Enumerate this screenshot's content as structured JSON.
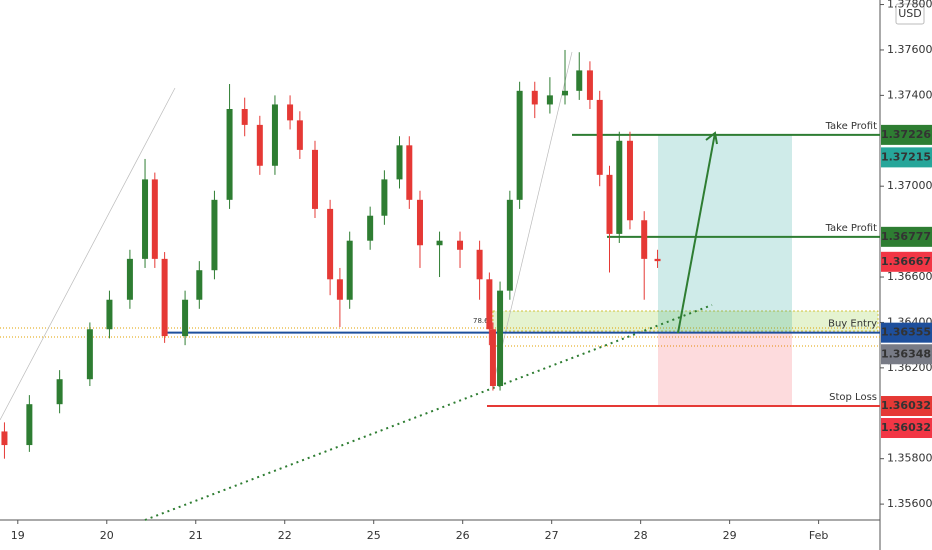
{
  "chart_data": {
    "type": "candlestick",
    "currency": "USD",
    "x": [
      -0.15,
      0.13,
      0.47,
      0.81,
      1.03,
      1.26,
      1.43,
      1.54,
      1.65,
      1.88,
      2.04,
      2.21,
      2.38,
      2.55,
      2.72,
      2.89,
      3.06,
      3.17,
      3.34,
      3.51,
      3.62,
      3.73,
      3.96,
      4.12,
      4.29,
      4.4,
      4.52,
      4.74,
      4.97,
      5.19,
      5.3,
      5.34,
      5.42,
      5.53,
      5.64,
      5.81,
      5.98,
      6.15,
      6.31,
      6.43,
      6.54,
      6.65,
      6.76,
      6.88,
      7.04,
      7.19
    ],
    "open": [
      1.3592,
      1.3586,
      1.3604,
      1.3615,
      1.3637,
      1.365,
      1.3668,
      1.3703,
      1.3668,
      1.3634,
      1.365,
      1.3663,
      1.3694,
      1.3734,
      1.3727,
      1.3709,
      1.3736,
      1.3729,
      1.3716,
      1.369,
      1.3659,
      1.365,
      1.3676,
      1.3687,
      1.3703,
      1.3718,
      1.3694,
      1.3674,
      1.3676,
      1.3672,
      1.3659,
      1.3637,
      1.3612,
      1.3654,
      1.3694,
      1.3742,
      1.3736,
      1.374,
      1.3742,
      1.3751,
      1.3738,
      1.3705,
      1.3679,
      1.372,
      1.3685,
      1.3668
    ],
    "high": [
      1.3596,
      1.3608,
      1.3619,
      1.364,
      1.3654,
      1.3672,
      1.3712,
      1.3706,
      1.3671,
      1.3654,
      1.3667,
      1.3698,
      1.3745,
      1.3739,
      1.3731,
      1.374,
      1.374,
      1.3733,
      1.372,
      1.3694,
      1.3664,
      1.368,
      1.3691,
      1.3707,
      1.3722,
      1.3722,
      1.3698,
      1.368,
      1.368,
      1.3676,
      1.3662,
      1.364,
      1.3658,
      1.3698,
      1.3746,
      1.3746,
      1.3748,
      1.376,
      1.3759,
      1.3755,
      1.3742,
      1.3709,
      1.3724,
      1.3724,
      1.3689,
      1.3672
    ],
    "low": [
      1.358,
      1.3583,
      1.36,
      1.3612,
      1.3633,
      1.3646,
      1.3664,
      1.3664,
      1.3631,
      1.363,
      1.3646,
      1.3659,
      1.369,
      1.3722,
      1.3705,
      1.3705,
      1.3725,
      1.3712,
      1.3686,
      1.3652,
      1.3638,
      1.3646,
      1.3672,
      1.3683,
      1.3699,
      1.369,
      1.3664,
      1.366,
      1.3664,
      1.365,
      1.363,
      1.361,
      1.361,
      1.365,
      1.369,
      1.373,
      1.3732,
      1.3736,
      1.3738,
      1.3734,
      1.37,
      1.3662,
      1.3675,
      1.3681,
      1.365,
      1.3664
    ],
    "close": [
      1.3586,
      1.3604,
      1.3615,
      1.3637,
      1.365,
      1.3668,
      1.3703,
      1.3668,
      1.3634,
      1.365,
      1.3663,
      1.3694,
      1.3734,
      1.3727,
      1.3709,
      1.3736,
      1.3729,
      1.3716,
      1.369,
      1.3659,
      1.365,
      1.3676,
      1.3687,
      1.3703,
      1.3718,
      1.3694,
      1.3674,
      1.3676,
      1.3672,
      1.3659,
      1.3637,
      1.3612,
      1.3654,
      1.3694,
      1.3742,
      1.3736,
      1.374,
      1.3742,
      1.3751,
      1.3738,
      1.3705,
      1.3679,
      1.372,
      1.3685,
      1.3668,
      1.3667
    ],
    "up_color": "#2e7d32",
    "down_color": "#e53935",
    "xlim": [
      -0.2,
      9.69
    ],
    "ylim": [
      1.3553,
      1.3782
    ],
    "xticks": [
      {
        "value": 0,
        "label": "19"
      },
      {
        "value": 1,
        "label": "20"
      },
      {
        "value": 2,
        "label": "21"
      },
      {
        "value": 3,
        "label": "22"
      },
      {
        "value": 4,
        "label": "25"
      },
      {
        "value": 5,
        "label": "26"
      },
      {
        "value": 6,
        "label": "27"
      },
      {
        "value": 7,
        "label": "28"
      },
      {
        "value": 8,
        "label": "29"
      },
      {
        "value": 9,
        "label": "Feb"
      }
    ],
    "yticks": [
      {
        "value": 1.378,
        "label": "1.37800"
      },
      {
        "value": 1.376,
        "label": "1.37600"
      },
      {
        "value": 1.374,
        "label": "1.37400"
      },
      {
        "value": 1.37,
        "label": "1.37000"
      },
      {
        "value": 1.366,
        "label": "1.36600"
      },
      {
        "value": 1.364,
        "label": "1.36400"
      },
      {
        "value": 1.362,
        "label": "1.36200"
      },
      {
        "value": 1.358,
        "label": "1.35800"
      },
      {
        "value": 1.356,
        "label": "1.35600"
      }
    ],
    "fib_label": "78.6",
    "levels": [
      {
        "label": "Take Profit",
        "value": 1.37226,
        "color": "#2e7d32"
      },
      {
        "label": "Take Profit",
        "value": 1.36777,
        "color": "#2e7d32"
      },
      {
        "label": "Buy Entry",
        "value": 1.36355,
        "color": "#1e4f9c"
      },
      {
        "label": "Stop Loss",
        "value": 1.36032,
        "color": "#e53935"
      }
    ],
    "markers": [
      {
        "value": 1.37215,
        "color": "#26a69a"
      },
      {
        "value": 1.36667,
        "color": "#f23645"
      },
      {
        "value": 1.36348,
        "color": "#787b86"
      },
      {
        "value": 1.36032,
        "color": "#f23645"
      }
    ]
  }
}
